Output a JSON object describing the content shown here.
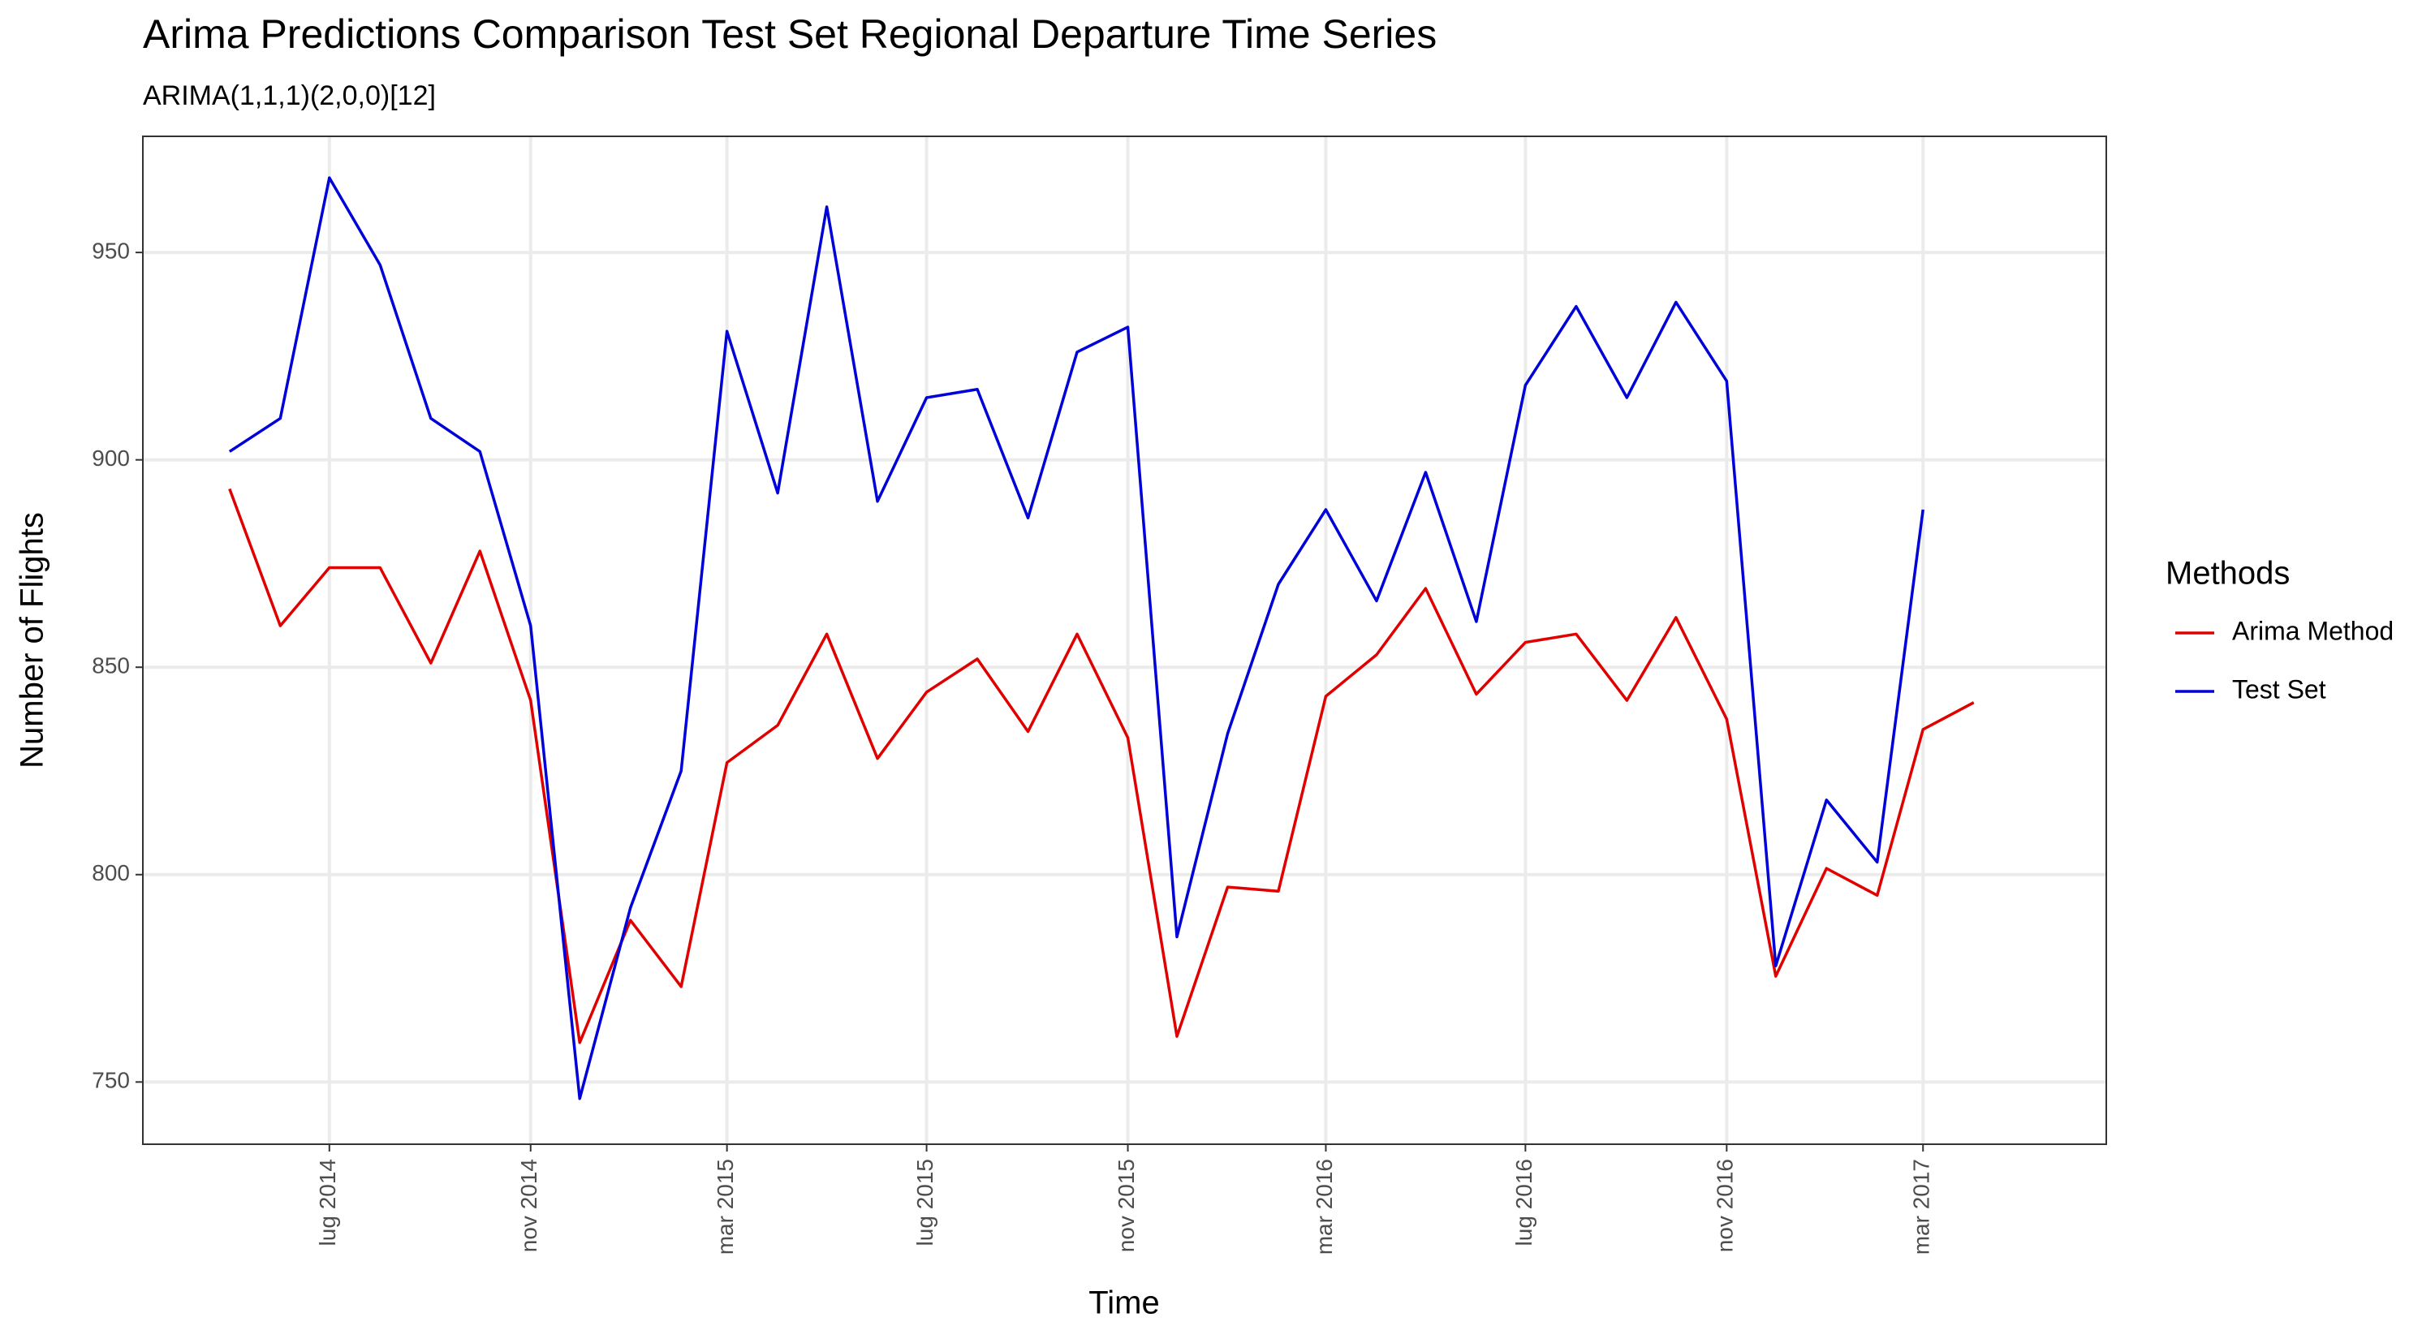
{
  "chart_data": {
    "type": "line",
    "title": "Arima Predictions Comparison Test Set Regional Departure Time Series",
    "subtitle": "ARIMA(1,1,1)(2,0,0)[12]",
    "x_label": "Time",
    "y_label": "Number of Flights",
    "legend_title": "Methods",
    "legend": "right",
    "grid": true,
    "x": [
      "2014-05",
      "2014-06",
      "2014-07",
      "2014-08",
      "2014-09",
      "2014-10",
      "2014-11",
      "2014-12",
      "2015-01",
      "2015-02",
      "2015-03",
      "2015-04",
      "2015-05",
      "2015-06",
      "2015-07",
      "2015-08",
      "2015-09",
      "2015-10",
      "2015-11",
      "2015-12",
      "2016-01",
      "2016-02",
      "2016-03",
      "2016-04",
      "2016-05",
      "2016-06",
      "2016-07",
      "2016-08",
      "2016-09",
      "2016-10",
      "2016-11",
      "2016-12",
      "2017-01",
      "2017-02",
      "2017-03",
      "2017-04"
    ],
    "series": [
      {
        "name": "Arima Method",
        "color": "#e00000",
        "values": [
          893,
          860,
          874,
          874,
          851,
          878,
          842,
          759.5,
          789,
          773,
          827,
          836,
          858,
          828,
          844,
          852,
          834.5,
          858,
          833,
          761,
          797,
          796,
          843,
          853,
          869,
          843.5,
          856,
          858,
          842,
          862,
          837.5,
          775.5,
          801.5,
          795,
          835,
          841.5
        ]
      },
      {
        "name": "Test Set",
        "color": "#0000d8",
        "values": [
          902,
          910,
          968,
          947,
          910,
          902,
          860,
          746,
          792,
          825,
          931,
          892,
          961,
          890,
          915,
          917,
          886,
          926,
          932,
          785,
          834,
          870,
          888,
          866,
          897,
          861,
          918,
          937,
          915,
          938,
          919,
          778,
          818,
          803,
          888,
          null
        ]
      }
    ],
    "xlim": [
      "2014-03-09",
      "2017-06-21"
    ],
    "xticks": [
      {
        "value": "2014-07",
        "label": "lug 2014"
      },
      {
        "value": "2014-11",
        "label": "nov 2014"
      },
      {
        "value": "2015-03",
        "label": "mar 2015"
      },
      {
        "value": "2015-07",
        "label": "lug 2015"
      },
      {
        "value": "2015-11",
        "label": "nov 2015"
      },
      {
        "value": "2016-03",
        "label": "mar 2016"
      },
      {
        "value": "2016-07",
        "label": "lug 2016"
      },
      {
        "value": "2016-11",
        "label": "nov 2016"
      },
      {
        "value": "2017-03",
        "label": "mar 2017"
      }
    ],
    "ylim": [
      735,
      978
    ],
    "yticks": [
      750,
      800,
      850,
      900,
      950
    ]
  }
}
